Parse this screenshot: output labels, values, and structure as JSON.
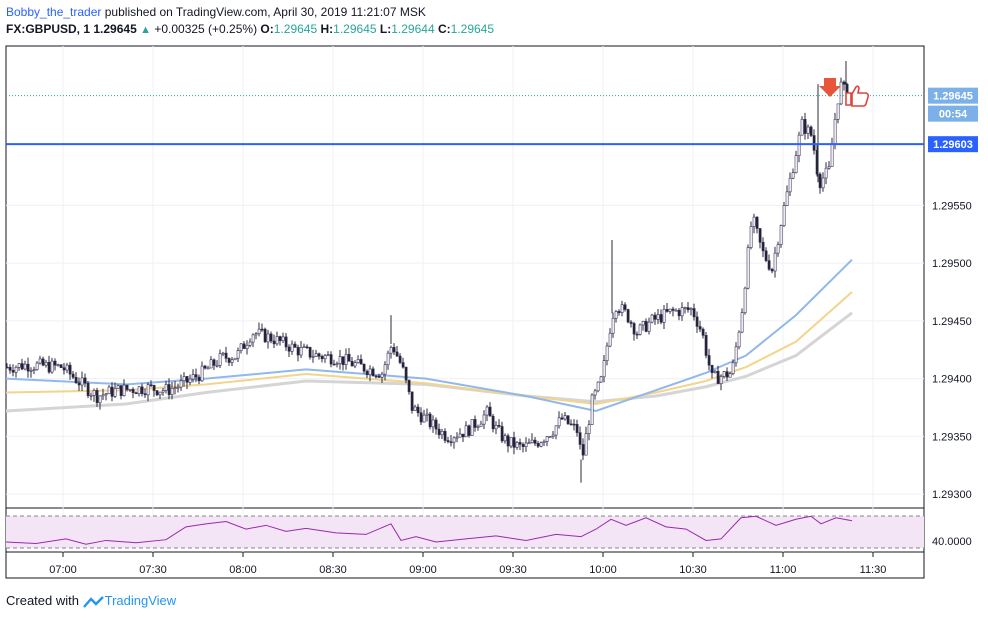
{
  "header": {
    "author": "Bobby_the_trader",
    "published": "published on TradingView.com, April 30, 2019 11:21:07 MSK",
    "symbol": "FX:GBPUSD, 1",
    "last": "1.29645",
    "change": "+0.00325 (+0.25%)",
    "o_label": "O:",
    "o": "1.29645",
    "h_label": "H:",
    "h": "1.29645",
    "l_label": "L:",
    "l": "1.29644",
    "c_label": "C:",
    "c": "1.29645"
  },
  "footer": {
    "created": "Created with",
    "brand": "TradingView"
  },
  "price_tags": {
    "current": "1.29645",
    "countdown": "00:54",
    "hline": "1.29603",
    "rsi": "40.0000"
  },
  "colors": {
    "ema_blue": "#90b8ec",
    "ema_yellow": "#f2d48a",
    "ema_gray": "#d5d5d5",
    "hline": "#2962ff",
    "rsi": "#9c27b0",
    "marker_arrow": "#e8553b",
    "thumbs_up": "#e0443a"
  },
  "chart_data": {
    "type": "candlestick",
    "symbol": "FX:GBPUSD",
    "timeframe": "1",
    "x_ticks": [
      "07:00",
      "07:30",
      "08:00",
      "08:30",
      "09:00",
      "09:30",
      "10:00",
      "10:30",
      "11:00",
      "11:30"
    ],
    "y_ticks": [
      "1.29300",
      "1.29350",
      "1.29400",
      "1.29450",
      "1.29500",
      "1.29550"
    ],
    "ylim": [
      1.29288,
      1.29688
    ],
    "horizontal_line": 1.29603,
    "rsi_level": 40.0,
    "price_path": [
      [
        0,
        1.2941
      ],
      [
        20,
        1.29412
      ],
      [
        55,
        1.2941
      ],
      [
        75,
        1.29395
      ],
      [
        90,
        1.29385
      ],
      [
        110,
        1.2939
      ],
      [
        140,
        1.29392
      ],
      [
        160,
        1.2939
      ],
      [
        175,
        1.29395
      ],
      [
        195,
        1.29405
      ],
      [
        215,
        1.29418
      ],
      [
        230,
        1.2942
      ],
      [
        245,
        1.2944
      ],
      [
        265,
        1.29435
      ],
      [
        290,
        1.29425
      ],
      [
        310,
        1.2942
      ],
      [
        330,
        1.29418
      ],
      [
        355,
        1.2941
      ],
      [
        375,
        1.29405
      ],
      [
        385,
        1.2943
      ],
      [
        395,
        1.2941
      ],
      [
        405,
        1.29375
      ],
      [
        425,
        1.2936
      ],
      [
        440,
        1.2935
      ],
      [
        460,
        1.29355
      ],
      [
        480,
        1.2937
      ],
      [
        490,
        1.29355
      ],
      [
        500,
        1.29345
      ],
      [
        515,
        1.2934
      ],
      [
        530,
        1.29345
      ],
      [
        545,
        1.29355
      ],
      [
        555,
        1.29365
      ],
      [
        570,
        1.29355
      ],
      [
        575,
        1.2933
      ],
      [
        585,
        1.2938
      ],
      [
        595,
        1.294
      ],
      [
        602,
        1.2944
      ],
      [
        608,
        1.29465
      ],
      [
        620,
        1.29455
      ],
      [
        630,
        1.2944
      ],
      [
        645,
        1.2945
      ],
      [
        665,
        1.29458
      ],
      [
        685,
        1.2946
      ],
      [
        695,
        1.2944
      ],
      [
        705,
        1.294
      ],
      [
        725,
        1.29405
      ],
      [
        735,
        1.2946
      ],
      [
        745,
        1.2954
      ],
      [
        755,
        1.2951
      ],
      [
        765,
        1.29495
      ],
      [
        775,
        1.2954
      ],
      [
        785,
        1.2958
      ],
      [
        795,
        1.2962
      ],
      [
        805,
        1.2961
      ],
      [
        812,
        1.2957
      ],
      [
        822,
        1.2958
      ],
      [
        828,
        1.29625
      ],
      [
        833,
        1.29655
      ],
      [
        840,
        1.29645
      ],
      [
        845,
        1.29645
      ]
    ],
    "ema_fast": [
      [
        0,
        1.294
      ],
      [
        120,
        1.29395
      ],
      [
        200,
        1.294
      ],
      [
        300,
        1.29408
      ],
      [
        420,
        1.294
      ],
      [
        520,
        1.29385
      ],
      [
        590,
        1.29372
      ],
      [
        650,
        1.2939
      ],
      [
        700,
        1.29405
      ],
      [
        740,
        1.2942
      ],
      [
        790,
        1.29455
      ],
      [
        846,
        1.29503
      ]
    ],
    "ema_mid": [
      [
        0,
        1.29388
      ],
      [
        120,
        1.2939
      ],
      [
        200,
        1.29395
      ],
      [
        300,
        1.29404
      ],
      [
        420,
        1.29396
      ],
      [
        520,
        1.29385
      ],
      [
        590,
        1.29378
      ],
      [
        650,
        1.29388
      ],
      [
        700,
        1.29398
      ],
      [
        740,
        1.2941
      ],
      [
        790,
        1.29432
      ],
      [
        846,
        1.29475
      ]
    ],
    "ema_slow": [
      [
        0,
        1.29372
      ],
      [
        120,
        1.29378
      ],
      [
        200,
        1.29388
      ],
      [
        300,
        1.29398
      ],
      [
        420,
        1.29395
      ],
      [
        520,
        1.29385
      ],
      [
        590,
        1.2938
      ],
      [
        650,
        1.29385
      ],
      [
        700,
        1.29393
      ],
      [
        740,
        1.29402
      ],
      [
        790,
        1.2942
      ],
      [
        846,
        1.29457
      ]
    ],
    "rsi_path": [
      [
        0,
        38
      ],
      [
        30,
        36
      ],
      [
        60,
        42
      ],
      [
        80,
        35
      ],
      [
        100,
        40
      ],
      [
        130,
        37
      ],
      [
        160,
        41
      ],
      [
        180,
        58
      ],
      [
        200,
        62
      ],
      [
        220,
        65
      ],
      [
        240,
        55
      ],
      [
        260,
        60
      ],
      [
        280,
        52
      ],
      [
        300,
        56
      ],
      [
        330,
        50
      ],
      [
        360,
        48
      ],
      [
        385,
        62
      ],
      [
        395,
        40
      ],
      [
        410,
        45
      ],
      [
        430,
        38
      ],
      [
        460,
        42
      ],
      [
        490,
        46
      ],
      [
        520,
        40
      ],
      [
        550,
        48
      ],
      [
        575,
        45
      ],
      [
        590,
        55
      ],
      [
        605,
        68
      ],
      [
        620,
        60
      ],
      [
        640,
        70
      ],
      [
        660,
        58
      ],
      [
        680,
        55
      ],
      [
        700,
        40
      ],
      [
        715,
        42
      ],
      [
        735,
        70
      ],
      [
        750,
        72
      ],
      [
        770,
        60
      ],
      [
        790,
        68
      ],
      [
        805,
        72
      ],
      [
        815,
        62
      ],
      [
        830,
        70
      ],
      [
        846,
        66
      ]
    ]
  }
}
